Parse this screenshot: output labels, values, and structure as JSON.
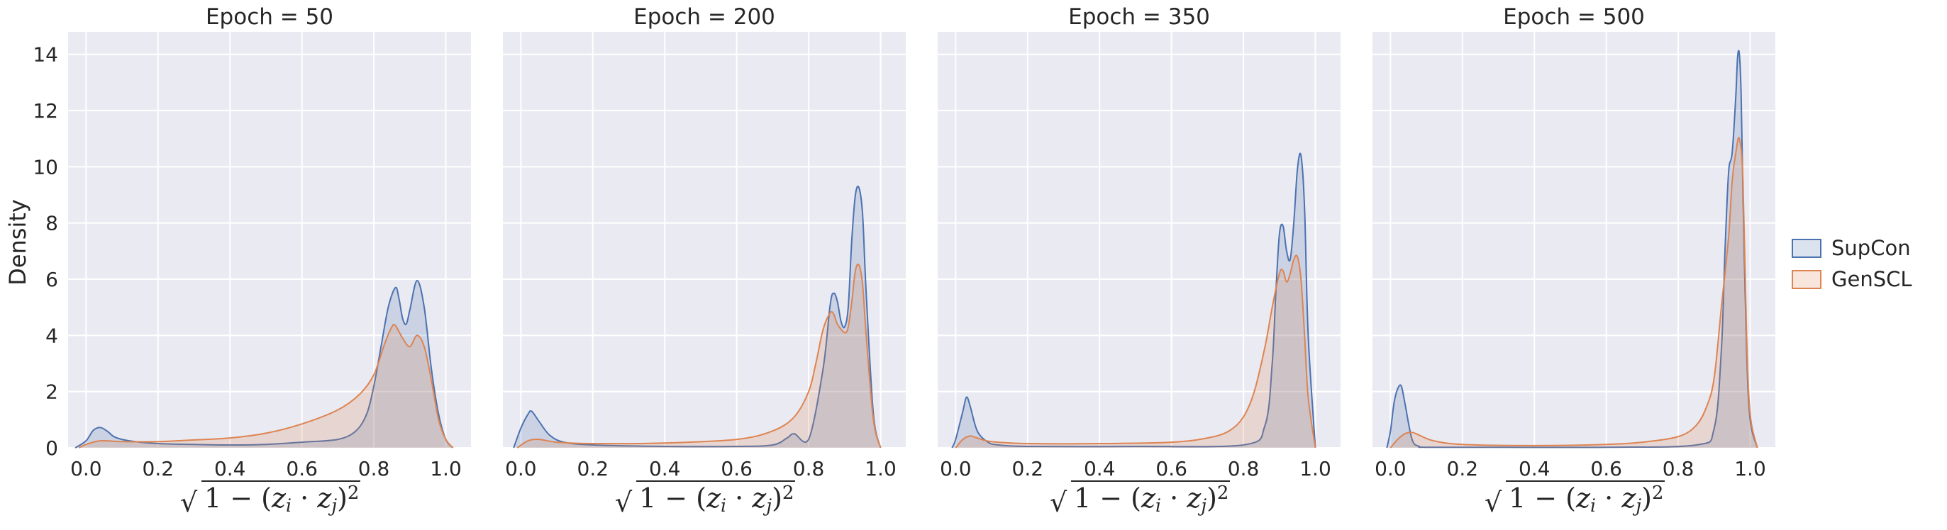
{
  "chart_data": {
    "type": "area",
    "ylabel": "Density",
    "xlabel": {
      "sqrt": "√",
      "prefix": "1 − (",
      "z1": "z",
      "sub1": "i",
      "dot": " · ",
      "z2": "z",
      "sub2": "j",
      "suffix": ")",
      "sup": "2"
    },
    "xlim": [
      -0.05,
      1.07
    ],
    "ylim": [
      0,
      14.8
    ],
    "xticks": [
      0.0,
      0.2,
      0.4,
      0.6,
      0.8,
      1.0
    ],
    "xtick_labels": [
      "0.0",
      "0.2",
      "0.4",
      "0.6",
      "0.8",
      "1.0"
    ],
    "yticks": [
      0,
      2,
      4,
      6,
      8,
      10,
      12,
      14
    ],
    "ytick_labels": [
      "0",
      "2",
      "4",
      "6",
      "8",
      "10",
      "12",
      "14"
    ],
    "grid": true,
    "legend": {
      "placement": "right",
      "entries": [
        "SupCon",
        "GenSCL"
      ]
    },
    "colors": {
      "SupCon": "#4c72b0",
      "GenSCL": "#dd8452",
      "background": "#eaeaf2",
      "grid": "#ffffff"
    },
    "panels": [
      {
        "title": "Epoch = 50",
        "series": [
          {
            "name": "SupCon",
            "x": [
              -0.03,
              0.0,
              0.02,
              0.04,
              0.06,
              0.08,
              0.12,
              0.2,
              0.3,
              0.4,
              0.5,
              0.6,
              0.7,
              0.75,
              0.78,
              0.8,
              0.82,
              0.84,
              0.86,
              0.87,
              0.88,
              0.89,
              0.9,
              0.92,
              0.94,
              0.96,
              0.98,
              1.0,
              1.02
            ],
            "y": [
              0,
              0.25,
              0.62,
              0.72,
              0.58,
              0.38,
              0.25,
              0.15,
              0.12,
              0.1,
              0.12,
              0.2,
              0.3,
              0.6,
              1.2,
              2.2,
              3.6,
              5.0,
              5.7,
              5.3,
              4.6,
              4.4,
              4.9,
              5.95,
              5.0,
              2.8,
              1.2,
              0.3,
              0
            ]
          },
          {
            "name": "GenSCL",
            "x": [
              -0.02,
              0.0,
              0.04,
              0.1,
              0.2,
              0.3,
              0.4,
              0.5,
              0.6,
              0.7,
              0.76,
              0.8,
              0.83,
              0.85,
              0.86,
              0.88,
              0.9,
              0.92,
              0.94,
              0.96,
              0.98,
              1.0,
              1.02
            ],
            "y": [
              0,
              0.12,
              0.25,
              0.22,
              0.22,
              0.28,
              0.35,
              0.52,
              0.85,
              1.35,
              1.9,
              2.6,
              3.7,
              4.3,
              4.35,
              3.9,
              3.6,
              4.0,
              3.6,
              2.4,
              1.0,
              0.3,
              0
            ]
          }
        ]
      },
      {
        "title": "Epoch = 200",
        "series": [
          {
            "name": "SupCon",
            "x": [
              -0.02,
              0.0,
              0.02,
              0.03,
              0.05,
              0.08,
              0.12,
              0.2,
              0.4,
              0.6,
              0.7,
              0.74,
              0.76,
              0.8,
              0.84,
              0.86,
              0.87,
              0.88,
              0.89,
              0.9,
              0.91,
              0.92,
              0.93,
              0.94,
              0.95,
              0.96,
              0.98,
              1.0
            ],
            "y": [
              0,
              0.7,
              1.2,
              1.3,
              0.95,
              0.45,
              0.2,
              0.1,
              0.05,
              0.05,
              0.1,
              0.35,
              0.5,
              0.3,
              2.8,
              5.1,
              5.5,
              5.2,
              4.5,
              4.3,
              5.0,
              7.4,
              9.0,
              9.25,
              8.3,
              5.5,
              1.2,
              0
            ]
          },
          {
            "name": "GenSCL",
            "x": [
              -0.01,
              0.02,
              0.05,
              0.1,
              0.2,
              0.4,
              0.6,
              0.7,
              0.76,
              0.8,
              0.82,
              0.84,
              0.86,
              0.87,
              0.88,
              0.9,
              0.91,
              0.92,
              0.93,
              0.94,
              0.95,
              0.96,
              0.98,
              1.0
            ],
            "y": [
              0,
              0.25,
              0.3,
              0.2,
              0.15,
              0.17,
              0.3,
              0.6,
              1.1,
              2.0,
              3.0,
              4.2,
              4.8,
              4.75,
              4.4,
              4.1,
              4.3,
              5.2,
              6.3,
              6.5,
              5.8,
              4.0,
              1.0,
              0
            ]
          }
        ]
      },
      {
        "title": "Epoch = 350",
        "series": [
          {
            "name": "SupCon",
            "x": [
              -0.01,
              0.0,
              0.02,
              0.03,
              0.04,
              0.06,
              0.09,
              0.12,
              0.2,
              0.5,
              0.8,
              0.86,
              0.88,
              0.89,
              0.9,
              0.91,
              0.92,
              0.93,
              0.94,
              0.95,
              0.96,
              0.97,
              0.98,
              1.0
            ],
            "y": [
              0,
              0.3,
              1.3,
              1.8,
              1.5,
              0.6,
              0.2,
              0.1,
              0.05,
              0.05,
              0.1,
              0.8,
              3.0,
              5.5,
              7.6,
              7.9,
              7.0,
              6.7,
              8.0,
              9.9,
              10.4,
              8.5,
              4.0,
              0
            ]
          },
          {
            "name": "GenSCL",
            "x": [
              0.0,
              0.02,
              0.04,
              0.06,
              0.1,
              0.2,
              0.4,
              0.6,
              0.7,
              0.76,
              0.8,
              0.83,
              0.86,
              0.88,
              0.9,
              0.91,
              0.92,
              0.93,
              0.94,
              0.95,
              0.96,
              0.97,
              0.98,
              1.0
            ],
            "y": [
              0,
              0.3,
              0.42,
              0.35,
              0.22,
              0.15,
              0.15,
              0.2,
              0.35,
              0.6,
              1.1,
              2.0,
              3.6,
              5.0,
              6.2,
              6.3,
              5.9,
              6.2,
              6.7,
              6.8,
              6.0,
              4.0,
              1.8,
              0
            ]
          }
        ]
      },
      {
        "title": "Epoch = 500",
        "series": [
          {
            "name": "SupCon",
            "x": [
              -0.01,
              0.0,
              0.01,
              0.02,
              0.03,
              0.04,
              0.06,
              0.08,
              0.1,
              0.3,
              0.6,
              0.85,
              0.9,
              0.92,
              0.93,
              0.94,
              0.95,
              0.96,
              0.965,
              0.97,
              0.975,
              0.98,
              0.99,
              1.0,
              1.02
            ],
            "y": [
              0,
              0.6,
              1.6,
              2.1,
              2.2,
              1.6,
              0.3,
              0.05,
              0.02,
              0.02,
              0.02,
              0.1,
              0.7,
              3.5,
              7.0,
              9.8,
              10.5,
              12.5,
              13.9,
              14.0,
              12.5,
              9.0,
              3.5,
              1.0,
              0
            ]
          },
          {
            "name": "GenSCL",
            "x": [
              0.0,
              0.02,
              0.04,
              0.06,
              0.08,
              0.12,
              0.2,
              0.4,
              0.6,
              0.7,
              0.8,
              0.85,
              0.88,
              0.9,
              0.92,
              0.94,
              0.95,
              0.96,
              0.97,
              0.98,
              0.99,
              1.0,
              1.02
            ],
            "y": [
              0,
              0.3,
              0.5,
              0.55,
              0.45,
              0.25,
              0.12,
              0.08,
              0.12,
              0.2,
              0.4,
              0.8,
              1.5,
              2.5,
              5.0,
              7.5,
              9.5,
              10.5,
              11.0,
              9.5,
              4.0,
              1.2,
              0
            ]
          }
        ]
      }
    ]
  }
}
